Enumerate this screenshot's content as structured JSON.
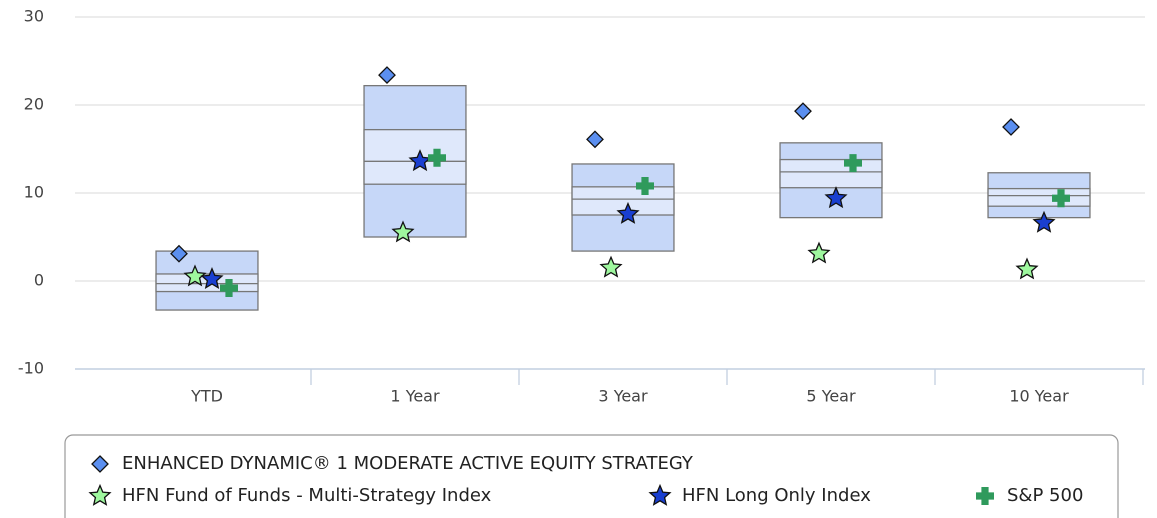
{
  "chart_data": {
    "type": "boxplot",
    "categories": [
      "YTD",
      "1 Year",
      "3 Year",
      "5 Year",
      "10 Year"
    ],
    "box": {
      "color": "#c6d7f8",
      "inner_color": "#dfe8fb",
      "low": [
        -3.3,
        5.0,
        3.4,
        7.2,
        7.2
      ],
      "q1": [
        -1.2,
        11.0,
        7.5,
        10.6,
        8.5
      ],
      "median": [
        -0.3,
        13.6,
        9.3,
        12.4,
        9.7
      ],
      "q3": [
        0.8,
        17.2,
        10.7,
        13.8,
        10.5
      ],
      "high": [
        3.4,
        22.2,
        13.3,
        15.7,
        12.3
      ]
    },
    "series": [
      {
        "name": "ENHANCED DYNAMIC® 1 MODERATE ACTIVE EQUITY STRATEGY",
        "color": "#5b8ff0",
        "marker": "diamond",
        "values": [
          3.1,
          23.4,
          16.1,
          19.3,
          17.5
        ]
      },
      {
        "name": "HFN Fund of Funds - Multi-Strategy Index",
        "color": "#9ef79e",
        "marker": "star",
        "values": [
          0.5,
          5.5,
          1.5,
          3.1,
          1.3
        ]
      },
      {
        "name": "HFN Long Only Index",
        "color": "#1a3fd0",
        "marker": "star",
        "values": [
          0.2,
          13.6,
          7.6,
          9.4,
          6.6
        ]
      },
      {
        "name": "S&P 500",
        "color": "#2f9a5c",
        "marker": "plus",
        "values": [
          -0.8,
          14.0,
          10.8,
          13.4,
          9.4
        ]
      }
    ],
    "ylim": [
      -10,
      30
    ],
    "yticks": [
      -10,
      0,
      10,
      20,
      30
    ],
    "grid": true
  }
}
